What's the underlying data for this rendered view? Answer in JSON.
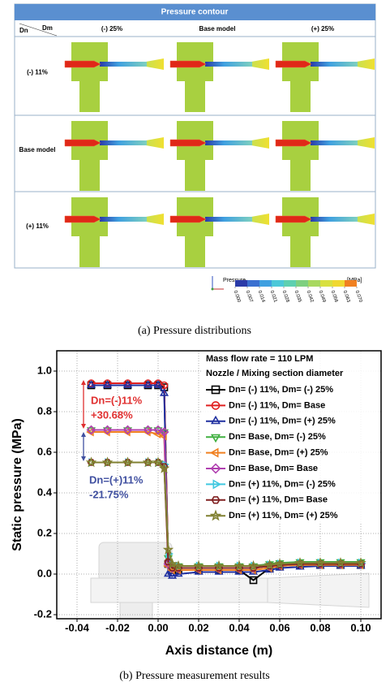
{
  "contour_panel": {
    "title": "Pressure contour",
    "row_axis": "Dn",
    "col_axis": "Dm",
    "columns": [
      "(-) 25%",
      "Base model",
      "(+) 25%"
    ],
    "rows": [
      "(-) 11%",
      "Base model",
      "(+) 11%"
    ],
    "colorbar": {
      "title": "Pressure",
      "unit": "[MPa]",
      "ticks": [
        {
          "value": 0,
          "label": "0.000"
        },
        {
          "value": 0.007,
          "label": "0.007"
        },
        {
          "value": 0.014,
          "label": "0.014"
        },
        {
          "value": 0.021,
          "label": "0.021"
        },
        {
          "value": 0.028,
          "label": "0.028"
        },
        {
          "value": 0.035,
          "label": "0.035"
        },
        {
          "value": 0.042,
          "label": "0.042"
        },
        {
          "value": 0.049,
          "label": "0.049"
        },
        {
          "value": 0.056,
          "label": "0.056"
        },
        {
          "value": 0.063,
          "label": "0.063"
        },
        {
          "value": 0.07,
          "label": "0.070"
        }
      ],
      "colors": [
        "#2a3aa8",
        "#3a6fd0",
        "#3fa0e0",
        "#4cc8d8",
        "#5ed0b0",
        "#7ed080",
        "#a8d860",
        "#d8e040",
        "#f0d830",
        "#f08020"
      ]
    },
    "caption": "(a) Pressure distributions"
  },
  "chart_data": {
    "type": "line",
    "x_label": "Axis distance (m)",
    "y_label": "Static pressure (MPa)",
    "caption": "(b) Pressure measurement results",
    "legend_title": [
      "Mass flow rate = 110 LPM",
      "Nozzle / Mixing section diameter"
    ],
    "legend": "upper right",
    "grid": true,
    "annotations": [
      {
        "text": "Dn=(-)11%",
        "color": "#e03030"
      },
      {
        "text": "+30.68%",
        "color": "#e03030"
      },
      {
        "text": "Dn=(+)11%",
        "color": "#4050a0"
      },
      {
        "text": "-21.75%",
        "color": "#4050a0"
      }
    ],
    "xlim": [
      -0.05,
      0.11
    ],
    "ylim": [
      -0.22,
      1.1
    ],
    "xticks": [
      -0.04,
      -0.02,
      {
        "value": 0,
        "label": "0.00"
      },
      0.02,
      0.04,
      0.06,
      0.08,
      {
        "value": 0.1,
        "label": "0.10"
      }
    ],
    "yticks": [
      {
        "value": -0.2,
        "label": "-0.2"
      },
      {
        "value": 0,
        "label": "0.0"
      },
      0.2,
      0.4,
      0.6,
      0.8,
      {
        "value": 1,
        "label": "1.0"
      }
    ],
    "x": [
      -0.033,
      -0.025,
      -0.015,
      -0.005,
      0.0,
      0.003,
      0.005,
      0.007,
      0.01,
      0.02,
      0.03,
      0.04,
      0.047,
      0.055,
      0.06,
      0.07,
      0.08,
      0.09,
      0.1
    ],
    "series": [
      {
        "name": "Dn= (-) 11%, Dm= (-) 25%",
        "color": "#000000",
        "marker": "square",
        "values": [
          0.93,
          0.93,
          0.93,
          0.93,
          0.93,
          0.92,
          0.05,
          0.02,
          0.02,
          0.02,
          0.02,
          0.02,
          -0.03,
          0.03,
          0.04,
          0.045,
          0.045,
          0.045,
          0.045
        ]
      },
      {
        "name": "Dn= (-) 11%, Dm= Base",
        "color": "#e02020",
        "marker": "circle",
        "values": [
          0.94,
          0.94,
          0.94,
          0.94,
          0.94,
          0.93,
          0.06,
          0.03,
          0.03,
          0.03,
          0.03,
          0.03,
          0.03,
          0.04,
          0.045,
          0.05,
          0.05,
          0.05,
          0.05
        ]
      },
      {
        "name": "Dn= (-) 11%, Dm= (+) 25%",
        "color": "#2030a0",
        "marker": "triangle-up",
        "values": [
          0.93,
          0.93,
          0.93,
          0.93,
          0.93,
          0.89,
          0.0,
          -0.01,
          0.0,
          0.01,
          0.01,
          0.01,
          0.01,
          0.02,
          0.03,
          0.035,
          0.04,
          0.04,
          0.04
        ]
      },
      {
        "name": "Dn= Base, Dm= (-) 25%",
        "color": "#40b040",
        "marker": "triangle-down",
        "values": [
          0.71,
          0.71,
          0.71,
          0.71,
          0.71,
          0.7,
          0.08,
          0.04,
          0.04,
          0.04,
          0.04,
          0.04,
          0.04,
          0.05,
          0.055,
          0.06,
          0.06,
          0.06,
          0.06
        ]
      },
      {
        "name": "Dn= Base, Dm= (+) 25%",
        "color": "#f08020",
        "marker": "triangle-left",
        "values": [
          0.7,
          0.7,
          0.7,
          0.7,
          0.69,
          0.68,
          0.04,
          0.02,
          0.02,
          0.02,
          0.02,
          0.02,
          0.02,
          0.03,
          0.04,
          0.045,
          0.045,
          0.045,
          0.045
        ]
      },
      {
        "name": "Dn= Base, Dm= Base",
        "color": "#b040b0",
        "marker": "diamond",
        "values": [
          0.71,
          0.71,
          0.71,
          0.71,
          0.71,
          0.7,
          0.05,
          0.03,
          0.03,
          0.03,
          0.03,
          0.03,
          0.03,
          0.04,
          0.045,
          0.05,
          0.05,
          0.05,
          0.05
        ]
      },
      {
        "name": "Dn= (+) 11%, Dm= (-) 25%",
        "color": "#40c8e0",
        "marker": "triangle-right",
        "values": [
          0.55,
          0.55,
          0.55,
          0.55,
          0.55,
          0.54,
          0.1,
          0.05,
          0.04,
          0.04,
          0.04,
          0.04,
          0.04,
          0.045,
          0.05,
          0.055,
          0.055,
          0.055,
          0.055
        ]
      },
      {
        "name": "Dn= (+) 11%, Dm= Base",
        "color": "#802020",
        "marker": "hexagon",
        "values": [
          0.55,
          0.55,
          0.55,
          0.55,
          0.55,
          0.53,
          0.06,
          0.03,
          0.03,
          0.03,
          0.03,
          0.03,
          0.03,
          0.04,
          0.045,
          0.05,
          0.05,
          0.05,
          0.05
        ]
      },
      {
        "name": "Dn= (+) 11%, Dm= (+) 25%",
        "color": "#808030",
        "marker": "star",
        "values": [
          0.55,
          0.55,
          0.55,
          0.55,
          0.55,
          0.52,
          0.12,
          0.05,
          0.04,
          0.04,
          0.04,
          0.04,
          0.04,
          0.045,
          0.05,
          0.055,
          0.055,
          0.055,
          0.055
        ]
      }
    ]
  }
}
